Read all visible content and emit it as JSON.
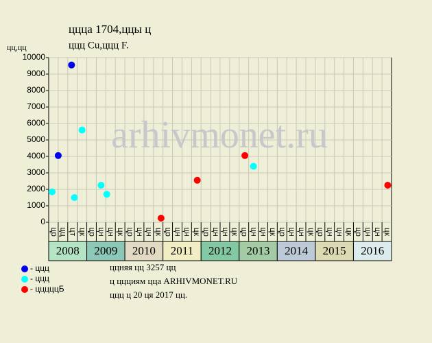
{
  "chart_data": {
    "type": "scatter",
    "title": "ццца 1704,ццы ц",
    "subtitle": "ццц Cu,ццц F.",
    "y_label": "цц,цц",
    "watermark": "arhivmonet.ru",
    "xlim": [
      0,
      36
    ],
    "ylim": [
      0,
      10000
    ],
    "yticks": [
      0,
      1000,
      2000,
      3000,
      4000,
      5000,
      6000,
      7000,
      8000,
      9000,
      10000
    ],
    "grid": true,
    "quarters": [
      "цр",
      "цц",
      "цт",
      "цк",
      "цр",
      "цн",
      "цн",
      "цк",
      "цр",
      "цн",
      "цн",
      "цк",
      "цр",
      "цн",
      "цн",
      "цк",
      "цр",
      "цн",
      "цн",
      "цк",
      "цр",
      "цн",
      "цн",
      "цк",
      "цр",
      "цн",
      "цн",
      "цк",
      "цр",
      "цн",
      "цн",
      "цк",
      "цр",
      "цн",
      "цн",
      "цк"
    ],
    "years": [
      {
        "label": "2008",
        "color": "#b4e4c4"
      },
      {
        "label": "2009",
        "color": "#8cc8b8"
      },
      {
        "label": "2010",
        "color": "#e2dac2"
      },
      {
        "label": "2011",
        "color": "#f2eec4"
      },
      {
        "label": "2012",
        "color": "#82c8a2"
      },
      {
        "label": "2013",
        "color": "#a4cca4"
      },
      {
        "label": "2014",
        "color": "#bccad8"
      },
      {
        "label": "2015",
        "color": "#dcdab2"
      },
      {
        "label": "2016",
        "color": "#dcecec"
      }
    ],
    "series": [
      {
        "name": "- ццц",
        "color": "#0000ee",
        "x": [
          1.0,
          2.4
        ],
        "values": [
          4050,
          9550
        ]
      },
      {
        "name": "- ццц",
        "color": "#00ffff",
        "x": [
          0.36,
          2.7,
          3.5,
          5.5,
          6.1,
          21.5
        ],
        "values": [
          1850,
          1500,
          5600,
          2250,
          1700,
          3400
        ]
      },
      {
        "name": "- цццццБ",
        "color": "#ff0000",
        "x": [
          11.8,
          15.6,
          20.6,
          35.6
        ],
        "values": [
          250,
          2550,
          4050,
          2250
        ]
      }
    ],
    "notes": [
      "ццняя цц 3257 цц",
      "ц ццциям цца ARHIVMONET.RU",
      "ццц ц 20 ця 2017 цц."
    ]
  }
}
